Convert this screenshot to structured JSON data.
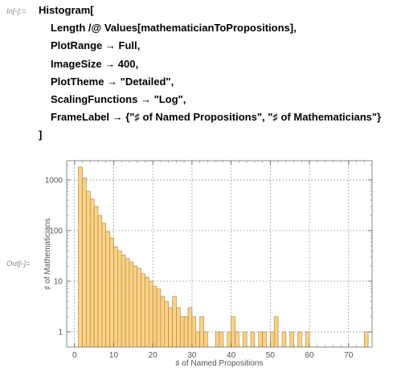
{
  "cell": {
    "in_label": "In[▫]:=",
    "out_label": "Out[▫]=",
    "code_lines": [
      "Histogram[",
      "Length /@ Values[mathematicianToPropositions],",
      "PlotRange → Full,",
      "ImageSize → 400,",
      "PlotTheme → \"Detailed\",",
      "ScalingFunctions → \"Log\",",
      "FrameLabel → {\"♯ of Named Propositions\", \"♯ of Mathematicians\"}",
      "]"
    ]
  },
  "chart_data": {
    "type": "bar",
    "xlabel": "♯ of Named Propositions",
    "ylabel": "♯ of Mathematicians",
    "x_ticks": [
      "0",
      "10",
      "20",
      "30",
      "40",
      "50",
      "60",
      "70"
    ],
    "y_ticks": [
      "1",
      "10",
      "100",
      "1000"
    ],
    "xlim": [
      -2,
      76
    ],
    "ylim_log": [
      0.5,
      2400
    ],
    "y_scale": "log",
    "grid": "dashed vertical and horizontal at major ticks",
    "bar_fill": "#f9d287",
    "bar_stroke": "#b08030",
    "frame_color": "#8a8a8a",
    "bin_width": 1,
    "bins_start": [
      1,
      2,
      3,
      4,
      5,
      6,
      7,
      8,
      9,
      10,
      11,
      12,
      13,
      14,
      15,
      16,
      17,
      18,
      19,
      20,
      21,
      22,
      23,
      24,
      25,
      26,
      27,
      28,
      29,
      30,
      31,
      32,
      33,
      36,
      37,
      39,
      40,
      41,
      43,
      45,
      47,
      48,
      50,
      51,
      53,
      55,
      57,
      59,
      74
    ],
    "counts": [
      1800,
      1100,
      600,
      420,
      300,
      200,
      140,
      95,
      72,
      48,
      40,
      33,
      28,
      24,
      20,
      18,
      14,
      12,
      10,
      8,
      7,
      5,
      4,
      3,
      5,
      3,
      2,
      2,
      3,
      2,
      1,
      2,
      1,
      1,
      1,
      1,
      2,
      1,
      1,
      1,
      1,
      1,
      1,
      2,
      1,
      1,
      1,
      1,
      1
    ]
  }
}
